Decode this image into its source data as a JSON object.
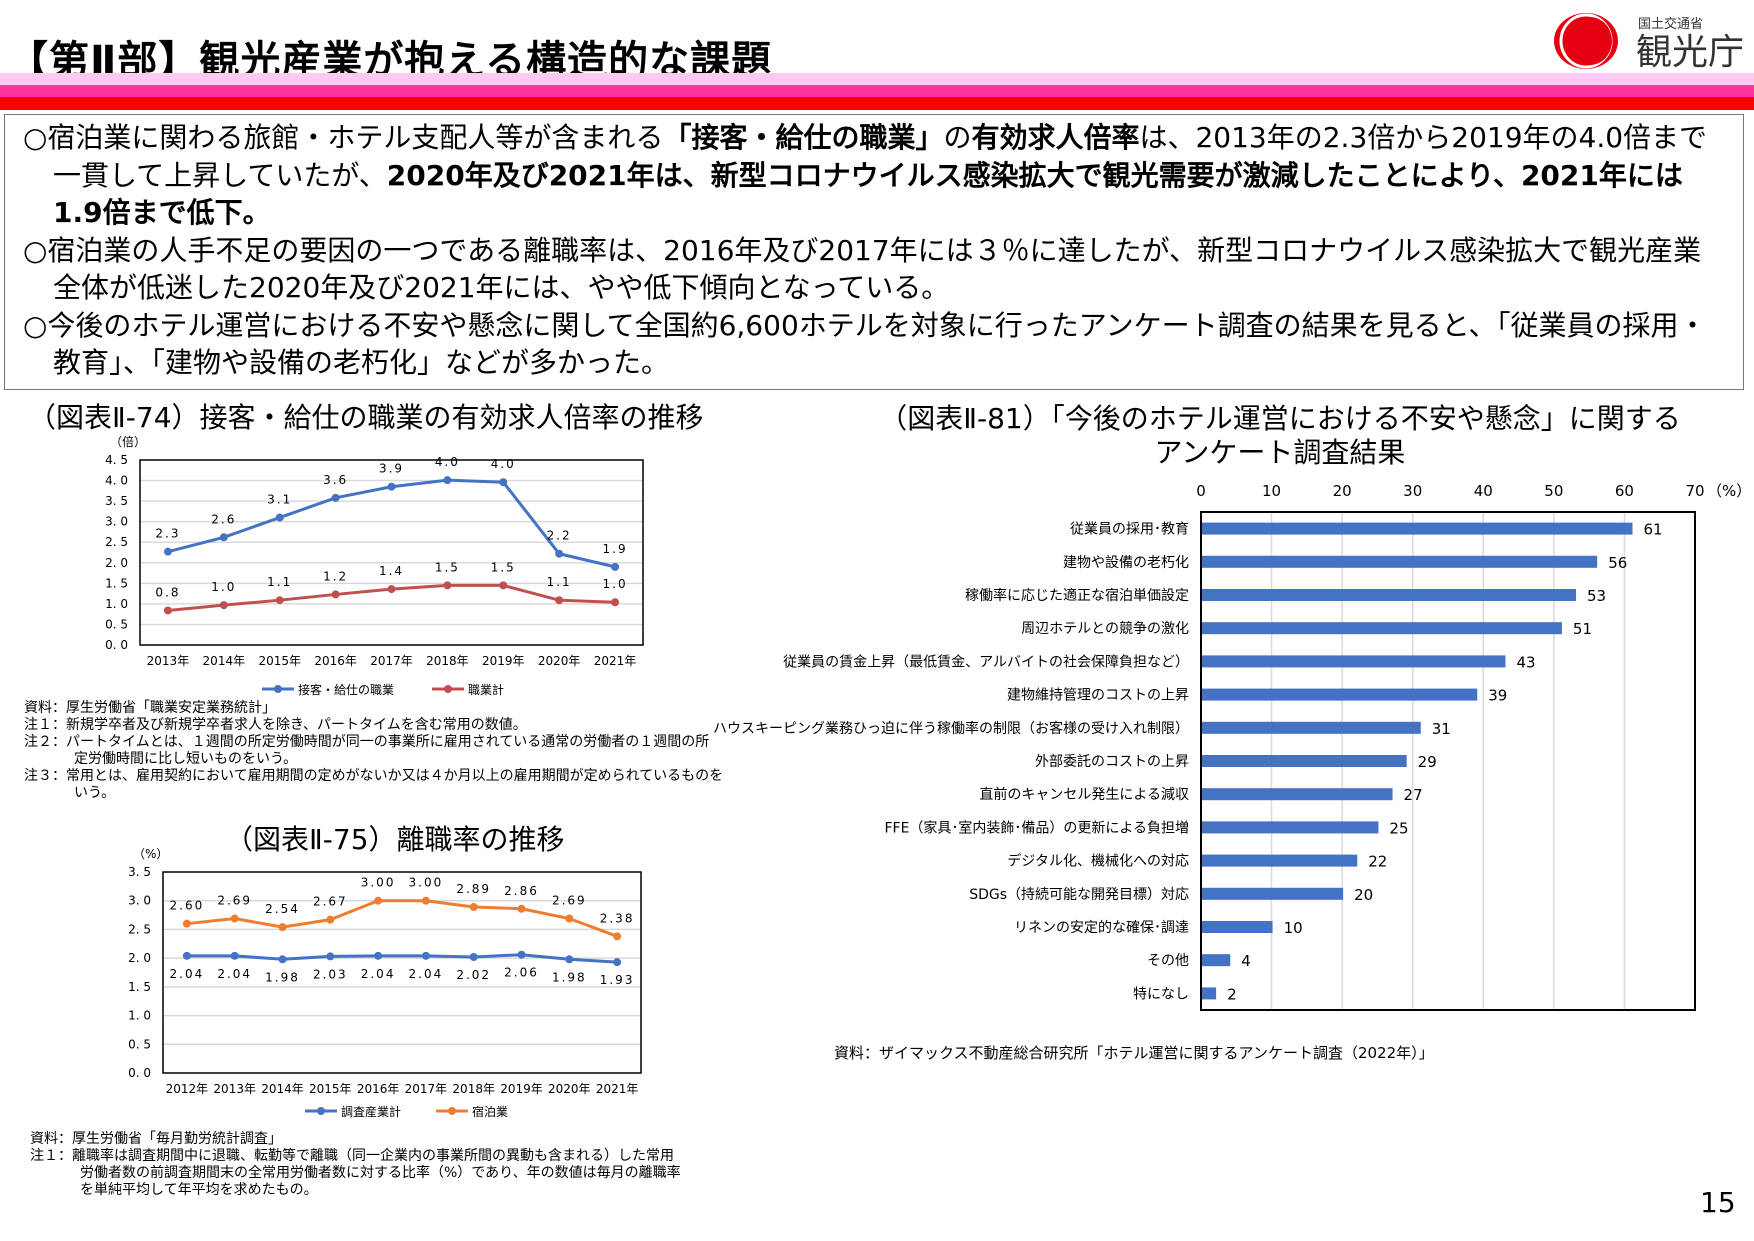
{
  "header": {
    "title": "【第Ⅱ部】観光産業が抱える構造的な課題",
    "logo": {
      "ministry": "国土交通省",
      "agency": "観光庁"
    },
    "colors": {
      "stripe_light": "#FFC8F5",
      "stripe_pink": "#FF3399",
      "stripe_red": "#FF0000",
      "logo_red": "#E60012"
    }
  },
  "summary": [
    [
      {
        "t": "○宿泊業に関わる旅館・ホテル支配人等が含まれる",
        "b": false
      },
      {
        "t": "「接客・給仕の職業」",
        "b": true
      },
      {
        "t": "の",
        "b": false
      },
      {
        "t": "有効求人倍率",
        "b": true
      },
      {
        "t": "は、2013年の2.3倍から2019年の4.0倍まで一貫して上昇していたが、",
        "b": false
      },
      {
        "t": "2020年及び2021年は、新型コロナウイルス感染拡大で観光需要が激減したことにより、2021年には1.9倍まで低下。",
        "b": true
      }
    ],
    [
      {
        "t": "○宿泊業の人手不足の要因の一つである離職率は、2016年及び2017年には３％に達したが、新型コロナウイルス感染拡大で観光産業全体が低迷した2020年及び2021年には、やや低下傾向となっている。",
        "b": false
      }
    ],
    [
      {
        "t": "○今後のホテル運営における不安や懸念に関して全国約6,600ホテルを対象に行ったアンケート調査の結果を見ると、「従業員の採用・教育」、「建物や設備の老朽化」などが多かった。",
        "b": false
      }
    ]
  ],
  "chart_data": [
    {
      "id": "fig74",
      "type": "line",
      "title": "（図表Ⅱ-74）接客・給仕の職業の有効求人倍率の推移",
      "ylabel": "（倍）",
      "categories": [
        "2013年",
        "2014年",
        "2015年",
        "2016年",
        "2017年",
        "2018年",
        "2019年",
        "2020年",
        "2021年"
      ],
      "ylim": [
        0,
        4.5
      ],
      "yticks": [
        "0.0",
        "0.5",
        "1.0",
        "1.5",
        "2.0",
        "2.5",
        "3.0",
        "3.5",
        "4.0",
        "4.5"
      ],
      "grid": true,
      "legend": "bottom",
      "series": [
        {
          "name": "接客・給仕の職業",
          "color": "#4472C4",
          "values": [
            2.27,
            2.62,
            3.1,
            3.58,
            3.85,
            4.01,
            3.96,
            2.22,
            1.9
          ],
          "labels": [
            "2.3",
            "2.6",
            "3.1",
            "3.6",
            "3.9",
            "4.0",
            "4.0",
            "2.2",
            "1.9"
          ],
          "label_pos": "above"
        },
        {
          "name": "職業計",
          "color": "#C0504D",
          "values": [
            0.84,
            0.97,
            1.09,
            1.23,
            1.36,
            1.45,
            1.45,
            1.09,
            1.04
          ],
          "labels": [
            "0.8",
            "1.0",
            "1.1",
            "1.2",
            "1.4",
            "1.5",
            "1.5",
            "1.1",
            "1.0"
          ],
          "label_pos": "above"
        }
      ],
      "notes": [
        "資料：厚生労働省「職業安定業務統計」",
        "注１：新規学卒者及び新規学卒者求人を除き、パートタイムを含む常用の数値。",
        "注２：パートタイムとは、１週間の所定労働時間が同一の事業所に雇用されている通常の労働者の１週間の所",
        "定労働時間に比し短いものをいう。",
        "注３：常用とは、雇用契約において雇用期間の定めがないか又は４か月以上の雇用期間が定められているものを",
        "いう。"
      ]
    },
    {
      "id": "fig75",
      "type": "line",
      "title": "（図表Ⅱ-75）離職率の推移",
      "ylabel": "（%）",
      "categories": [
        "2012年",
        "2013年",
        "2014年",
        "2015年",
        "2016年",
        "2017年",
        "2018年",
        "2019年",
        "2020年",
        "2021年"
      ],
      "ylim": [
        0,
        3.5
      ],
      "yticks": [
        "0.0",
        "0.5",
        "1.0",
        "1.5",
        "2.0",
        "2.5",
        "3.0",
        "3.5"
      ],
      "grid": true,
      "legend": "bottom",
      "series": [
        {
          "name": "調査産業計",
          "color": "#4472C4",
          "values": [
            2.04,
            2.04,
            1.98,
            2.03,
            2.04,
            2.04,
            2.02,
            2.06,
            1.98,
            1.93
          ],
          "labels": [
            "2.04",
            "2.04",
            "1.98",
            "2.03",
            "2.04",
            "2.04",
            "2.02",
            "2.06",
            "1.98",
            "1.93"
          ],
          "label_pos": "below"
        },
        {
          "name": "宿泊業",
          "color": "#ED7D31",
          "values": [
            2.6,
            2.69,
            2.54,
            2.67,
            3.0,
            3.0,
            2.89,
            2.86,
            2.69,
            2.38
          ],
          "labels": [
            "2.60",
            "2.69",
            "2.54",
            "2.67",
            "3.00",
            "3.00",
            "2.89",
            "2.86",
            "2.69",
            "2.38"
          ],
          "label_pos": "above"
        }
      ],
      "notes": [
        "資料：厚生労働省「毎月勤労統計調査」",
        "注１：離職率は調査期間中に退職、転勤等で離職（同一企業内の事業所間の異動も含まれる）した常用",
        "労働者数の前調査期間末の全常用労働者数に対する比率（%）であり、年の数値は毎月の離職率",
        "を単純平均して年平均を求めたもの。"
      ]
    },
    {
      "id": "fig81",
      "type": "bar",
      "orientation": "horizontal",
      "title": [
        "（図表Ⅱ-81）「今後のホテル運営における不安や懸念」に関する",
        "アンケート調査結果"
      ],
      "xlim": [
        0,
        70
      ],
      "xticks": [
        "0",
        "10",
        "20",
        "30",
        "40",
        "50",
        "60",
        "70"
      ],
      "xunit": "（%）",
      "grid": true,
      "color": "#4472C4",
      "categories": [
        "従業員の採用･教育",
        "建物や設備の老朽化",
        "稼働率に応じた適正な宿泊単価設定",
        "周辺ホテルとの競争の激化",
        "従業員の賃金上昇（最低賃金、アルバイトの社会保障負担など）",
        "建物維持管理のコストの上昇",
        "ハウスキーピング業務ひっ迫に伴う稼働率の制限（お客様の受け入れ制限）",
        "外部委託のコストの上昇",
        "直前のキャンセル発生による減収",
        "FFE（家具･室内装飾･備品）の更新による負担増",
        "デジタル化、機械化への対応",
        "SDGs（持続可能な開発目標）対応",
        "リネンの安定的な確保･調達",
        "その他",
        "特になし"
      ],
      "values": [
        61,
        56,
        53,
        51,
        43,
        39,
        31,
        29,
        27,
        25,
        22,
        20,
        10,
        4,
        2
      ],
      "source": "資料：ザイマックス不動産総合研究所「ホテル運営に関するアンケート調査（2022年）」"
    }
  ],
  "page_number": "15"
}
